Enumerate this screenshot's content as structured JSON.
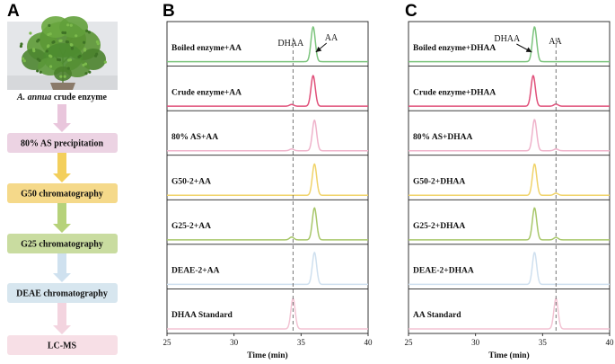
{
  "panel_a": {
    "label": "A",
    "photo_caption_italic": "A. annua",
    "photo_caption_rest": " crude enzyme",
    "steps": [
      {
        "label": "80% AS precipitation",
        "color": "#ecd3e3"
      },
      {
        "label": "G50 chromatography",
        "color": "#f5d98a"
      },
      {
        "label": "G25 chromatography",
        "color": "#c9dca0"
      },
      {
        "label": "DEAE chromatography",
        "color": "#d7e6ef"
      },
      {
        "label": "LC-MS",
        "color": "#f7dfe6"
      }
    ],
    "arrow_colors": [
      "#e9c6dc",
      "#f3cf5c",
      "#b6d27a",
      "#cfe1ef",
      "#f3d4df"
    ]
  },
  "chart_data": [
    {
      "type": "line",
      "panel_label": "B",
      "xlabel": "Time (min)",
      "xlim": [
        25,
        40
      ],
      "xticks": [
        25,
        30,
        35,
        40
      ],
      "dashed_reference_x": 34.4,
      "series": [
        {
          "name": "Boiled enzyme+AA",
          "color": "#7cc47d",
          "peaks": [
            {
              "x": 35.9,
              "height": 1.0
            }
          ]
        },
        {
          "name": "Crude enzyme+AA",
          "color": "#e0507a",
          "peaks": [
            {
              "x": 35.9,
              "height": 0.88
            },
            {
              "x": 34.3,
              "height": 0.05
            }
          ]
        },
        {
          "name": "80% AS+AA",
          "color": "#efb3cb",
          "peaks": [
            {
              "x": 36.0,
              "height": 0.88
            },
            {
              "x": 34.3,
              "height": 0.05
            }
          ]
        },
        {
          "name": "G50-2+AA",
          "color": "#f0d36a",
          "peaks": [
            {
              "x": 36.0,
              "height": 0.9
            }
          ]
        },
        {
          "name": "G25-2+AA",
          "color": "#a8c76a",
          "peaks": [
            {
              "x": 36.0,
              "height": 0.92
            },
            {
              "x": 34.3,
              "height": 0.08
            }
          ]
        },
        {
          "name": "DEAE-2+AA",
          "color": "#cfe0ef",
          "peaks": [
            {
              "x": 36.0,
              "height": 0.92
            }
          ]
        },
        {
          "name": "DHAA Standard",
          "color": "#f3c4d4",
          "peaks": [
            {
              "x": 34.4,
              "height": 0.88
            }
          ]
        }
      ],
      "annotations": [
        {
          "text": "DHAA",
          "points_to": "34.4"
        },
        {
          "text": "AA",
          "points_to": "35.9"
        }
      ]
    },
    {
      "type": "line",
      "panel_label": "C",
      "xlabel": "Time (min)",
      "xlim": [
        25,
        40
      ],
      "xticks": [
        25,
        30,
        35,
        40
      ],
      "dashed_reference_x": 36.0,
      "series": [
        {
          "name": "Boiled enzyme+DHAA",
          "color": "#7cc47d",
          "peaks": [
            {
              "x": 34.4,
              "height": 1.0
            }
          ]
        },
        {
          "name": "Crude enzyme+DHAA",
          "color": "#e0507a",
          "peaks": [
            {
              "x": 34.3,
              "height": 0.88
            },
            {
              "x": 36.0,
              "height": 0.06
            }
          ]
        },
        {
          "name": "80% AS+DHAA",
          "color": "#efb3cb",
          "peaks": [
            {
              "x": 34.4,
              "height": 0.9
            },
            {
              "x": 36.0,
              "height": 0.05
            }
          ]
        },
        {
          "name": "G50-2+DHAA",
          "color": "#f0d36a",
          "peaks": [
            {
              "x": 34.4,
              "height": 0.9
            },
            {
              "x": 36.0,
              "height": 0.06
            }
          ]
        },
        {
          "name": "G25-2+DHAA",
          "color": "#a8c76a",
          "peaks": [
            {
              "x": 34.4,
              "height": 0.92
            },
            {
              "x": 36.0,
              "height": 0.07
            }
          ]
        },
        {
          "name": "DEAE-2+DHAA",
          "color": "#cfe0ef",
          "peaks": [
            {
              "x": 34.4,
              "height": 0.92
            }
          ]
        },
        {
          "name": "AA Standard",
          "color": "#f3c4d4",
          "peaks": [
            {
              "x": 36.0,
              "height": 0.88
            }
          ]
        }
      ],
      "annotations": [
        {
          "text": "DHAA",
          "points_to": "34.4"
        },
        {
          "text": "AA",
          "points_to": "36.0"
        }
      ]
    }
  ]
}
